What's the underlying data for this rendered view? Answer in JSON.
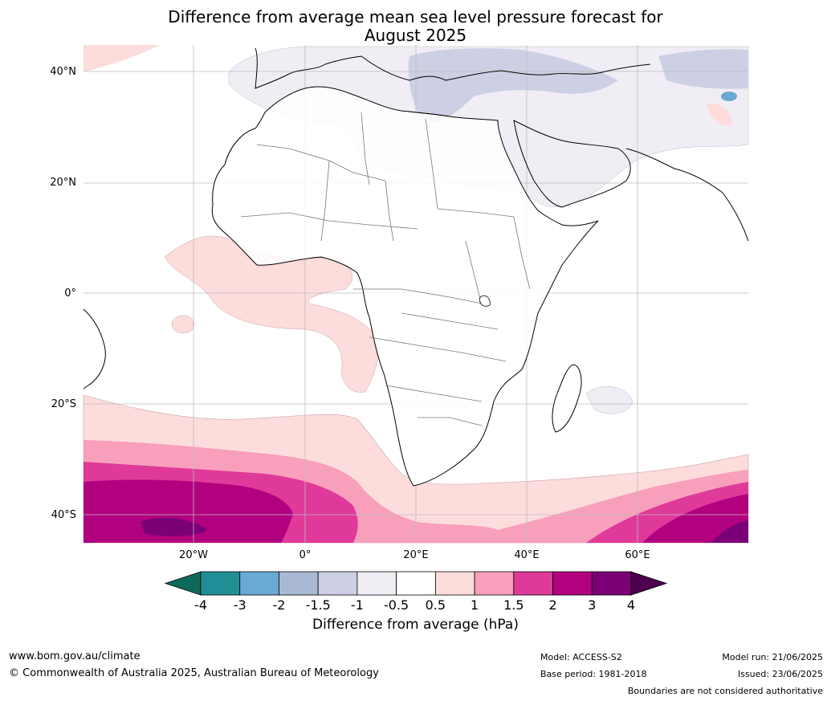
{
  "title_line1": "Difference from average mean sea level pressure forecast for",
  "title_line2": "August 2025",
  "lat_labels": [
    "40°N",
    "20°N",
    "0°",
    "20°S",
    "40°S"
  ],
  "lon_labels": [
    "20°W",
    "0°",
    "20°E",
    "40°E",
    "60°E"
  ],
  "colorbar": {
    "labels": [
      "-4",
      "-3",
      "-2",
      "-1.5",
      "-1",
      "-0.5",
      "0.5",
      "1",
      "1.5",
      "2",
      "3",
      "4"
    ],
    "colors": [
      "#1f8f95",
      "#6aa9d2",
      "#a9b9d4",
      "#cdd0e4",
      "#f1edf5",
      "#ffffff",
      "#fddcdc",
      "#f89fbc",
      "#df3a9a",
      "#b2017f",
      "#7b0078"
    ],
    "under_color": "#0b6a5a",
    "over_color": "#4d004b",
    "title": "Difference from average (hPa)"
  },
  "footer": {
    "website": "www.bom.gov.au/climate",
    "copyright": "© Commonwealth of Australia 2025, Australian Bureau of Meteorology",
    "model": "Model: ACCESS-S2",
    "base_period": "Base period: 1981-2018",
    "model_run": "Model run: 21/06/2025",
    "issued": "Issued: 23/06/2025",
    "disclaimer": "Boundaries are not considered authoritative"
  }
}
